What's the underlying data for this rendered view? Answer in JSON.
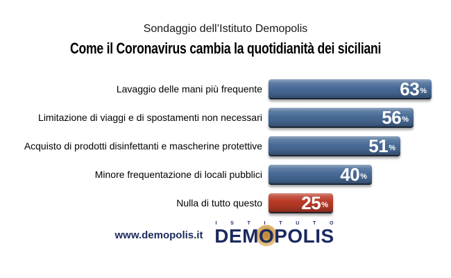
{
  "header": {
    "subtitle": "Sondaggio dell’Istituto Demopolis",
    "title": "Come il Coronavirus cambia la quotidianità dei siciliani"
  },
  "chart_data": {
    "type": "bar",
    "orientation": "horizontal",
    "title": "Come il Coronavirus cambia la quotidianità dei siciliani",
    "subtitle": "Sondaggio dell’Istituto Demopolis",
    "unit": "%",
    "legend": "none",
    "grid": false,
    "value_range": [
      0,
      63
    ],
    "colors": {
      "blue": "#486b97",
      "red": "#b83a26"
    },
    "rows": [
      {
        "label": "Lavaggio delle mani più frequente",
        "value": 63,
        "color": "blue"
      },
      {
        "label": "Limitazione di viaggi e di spostamenti non necessari",
        "value": 56,
        "color": "blue"
      },
      {
        "label": "Acquisto di prodotti disinfettanti e mascherine protettive",
        "value": 51,
        "color": "blue"
      },
      {
        "label": "Minore frequentazione di locali pubblici",
        "value": 40,
        "color": "blue"
      },
      {
        "label": "Nulla di tutto questo",
        "value": 25,
        "color": "red"
      }
    ]
  },
  "footer": {
    "website": "www.demopolis.it",
    "logo": {
      "istituto": "ISTITUTO",
      "wordmark_dem": "DEM",
      "wordmark_o": "O",
      "wordmark_polis": "POLIS",
      "navy_color": "#1b2a5e",
      "accent_color": "#d9a44a"
    }
  }
}
